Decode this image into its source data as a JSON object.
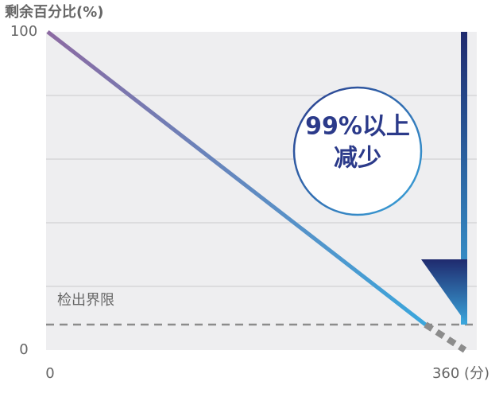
{
  "chart_data": {
    "type": "line",
    "y_label": "剩余百分比(%)",
    "xlim": [
      0,
      360
    ],
    "ylim": [
      0,
      100
    ],
    "xticks": [
      0,
      {
        "value": 360,
        "label": "360 (分)"
      }
    ],
    "yticks": [
      0,
      100
    ],
    "grid_values": [
      20,
      40,
      60,
      80
    ],
    "grid_color": "#d6d6d8",
    "background": "#eeeef0",
    "series": [
      {
        "x": [
          0,
          326
        ],
        "values": [
          100,
          8
        ],
        "gradient": [
          "#8c6aa2",
          "#3aa6dc"
        ],
        "dashed": false
      },
      {
        "x": [
          326,
          360
        ],
        "values": [
          8,
          0
        ],
        "color": "#8c8c8c",
        "dashed": true
      }
    ],
    "detection_limit": {
      "label": "检出界限",
      "value": 8,
      "color": "#8c8c8c"
    },
    "annotation": {
      "lines": [
        "99%以上",
        "减少"
      ],
      "color": "#2b3a8a"
    }
  }
}
